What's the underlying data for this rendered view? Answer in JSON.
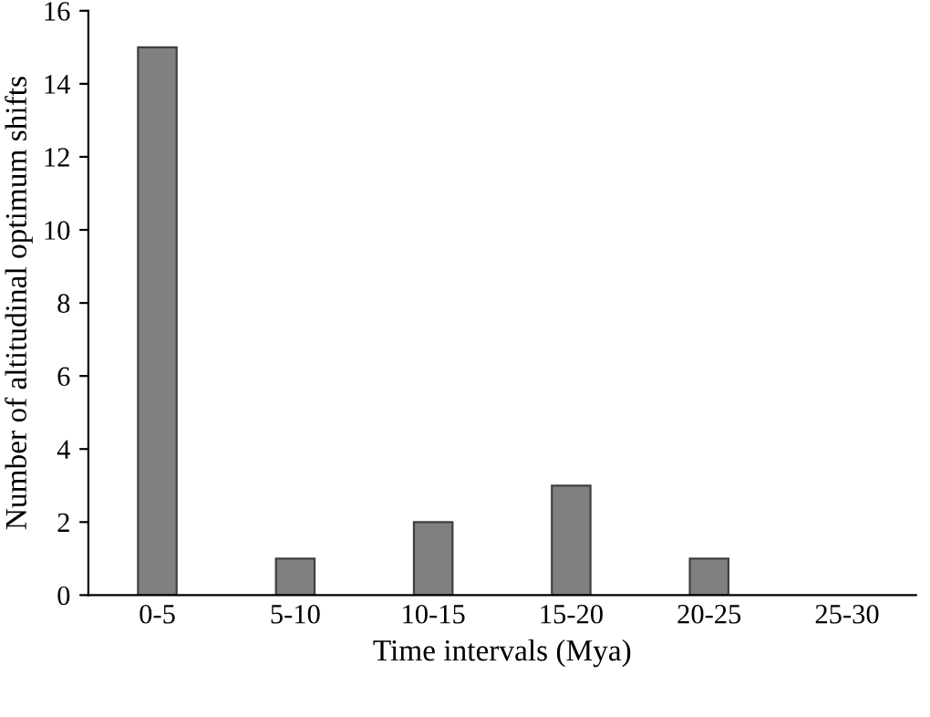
{
  "chart_data": {
    "type": "bar",
    "xlabel": "Time intervals (Mya)",
    "ylabel": "Number of altitudinal optimum shifts",
    "categories": [
      "0-5",
      "5-10",
      "10-15",
      "15-20",
      "20-25",
      "25-30"
    ],
    "values": [
      15,
      1,
      2,
      3,
      1,
      0
    ],
    "color": "#808080",
    "ylim": [
      0,
      16
    ],
    "yticks": [
      0,
      2,
      4,
      6,
      8,
      10,
      12,
      14,
      16
    ],
    "grid": false,
    "legend": false
  }
}
